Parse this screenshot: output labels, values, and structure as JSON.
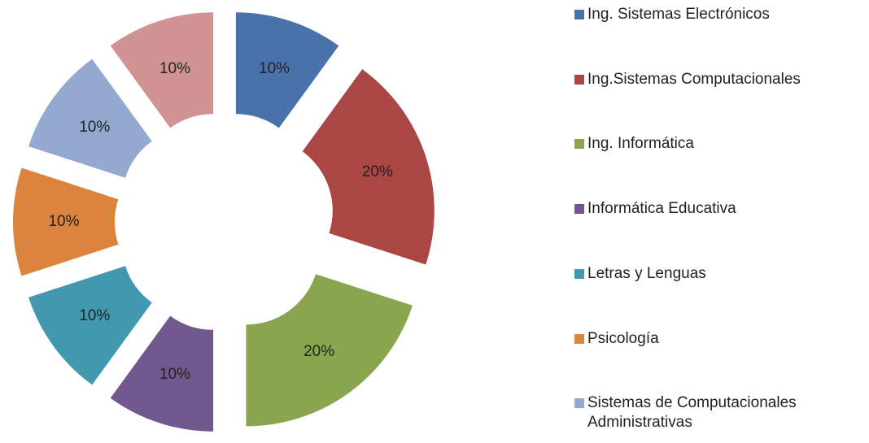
{
  "chart_data": {
    "type": "doughnut",
    "categories": [
      "Ing. Sistemas Electrónicos",
      "Ing.Sistemas Computacionales",
      "Ing. Informática",
      "Informática Educativa",
      "Letras y Lenguas",
      "Psicología",
      "Sistemas de Computacionales Administrativas",
      null
    ],
    "values": [
      10,
      20,
      20,
      10,
      10,
      10,
      10,
      10
    ],
    "value_labels": [
      "10%",
      "20%",
      "20%",
      "10%",
      "10%",
      "10%",
      "10%",
      "10%"
    ],
    "colors": [
      "#4a72aa",
      "#aa4643",
      "#89a54e",
      "#71588f",
      "#4198af",
      "#db843d",
      "#93a9cf",
      "#d19392"
    ],
    "legend": "right"
  }
}
